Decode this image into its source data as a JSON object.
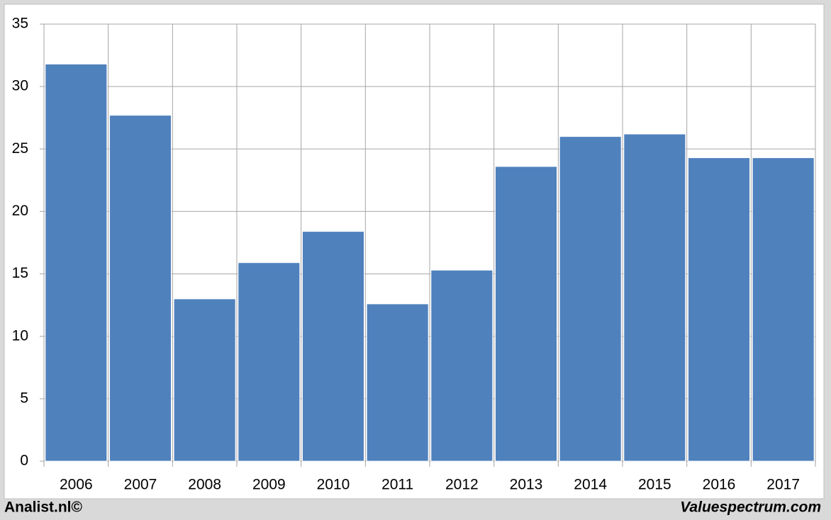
{
  "chart_data": {
    "type": "bar",
    "categories": [
      "2006",
      "2007",
      "2008",
      "2009",
      "2010",
      "2011",
      "2012",
      "2013",
      "2014",
      "2015",
      "2016",
      "2017"
    ],
    "values": [
      31.8,
      27.7,
      13.0,
      15.9,
      18.4,
      12.6,
      15.3,
      23.6,
      26.0,
      26.2,
      24.3,
      24.3
    ],
    "color": "#4f81bd",
    "ylim": [
      0,
      35
    ],
    "yticks": [
      0,
      5,
      10,
      15,
      20,
      25,
      30,
      35
    ],
    "grid": true,
    "footer_left": "Analist.nl©",
    "footer_right": "Valuespectrum.com"
  }
}
